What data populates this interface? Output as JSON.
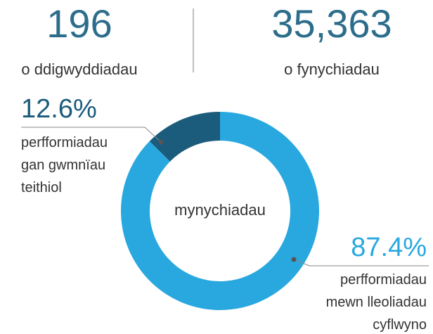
{
  "stats": [
    {
      "value": "196",
      "label": "o ddigwyddiadau"
    },
    {
      "value": "35,363",
      "label": "o fynychiadau"
    }
  ],
  "chart_data": {
    "type": "pie",
    "center_text": "mynychiadau",
    "categories": [
      "perfformiadau gan gwmnïau teithiol",
      "perfformiadau mewn lleoliadau cyflwyno"
    ],
    "values": [
      12.6,
      87.4
    ],
    "value_labels": [
      "12.6%",
      "87.4%"
    ],
    "colors": [
      "#1b5b7c",
      "#29a8e0"
    ]
  }
}
